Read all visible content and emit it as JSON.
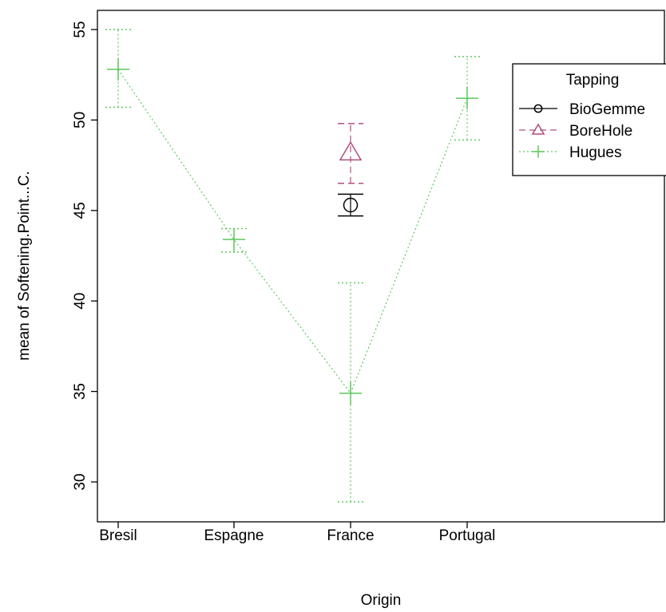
{
  "chart_data": {
    "type": "line",
    "title": "",
    "xlabel": "Origin",
    "ylabel": "mean of Softening.Point...C.",
    "ylim": [
      27.8,
      56.1
    ],
    "yticks": [
      30,
      35,
      40,
      45,
      50,
      55
    ],
    "categories": [
      "Bresil",
      "Espagne",
      "France",
      "Portugal"
    ],
    "legend": {
      "title": "Tapping",
      "position": "top-right"
    },
    "series": [
      {
        "name": "BioGemme",
        "color": "#000000",
        "marker": "circle",
        "line": "solid",
        "points": [
          {
            "x": "France",
            "y": 45.3,
            "low": 44.7,
            "high": 45.9
          }
        ]
      },
      {
        "name": "BoreHole",
        "color": "#b04f7f",
        "marker": "triangle",
        "line": "dashed",
        "points": [
          {
            "x": "France",
            "y": 48.2,
            "low": 46.5,
            "high": 49.8
          }
        ]
      },
      {
        "name": "Hugues",
        "color": "#5cc85c",
        "marker": "plus",
        "line": "dotted",
        "points": [
          {
            "x": "Bresil",
            "y": 52.8,
            "low": 50.7,
            "high": 55.0
          },
          {
            "x": "Espagne",
            "y": 43.4,
            "low": 42.7,
            "high": 44.0
          },
          {
            "x": "France",
            "y": 34.9,
            "low": 28.9,
            "high": 41.0
          },
          {
            "x": "Portugal",
            "y": 51.2,
            "low": 48.9,
            "high": 53.5
          }
        ]
      }
    ]
  }
}
